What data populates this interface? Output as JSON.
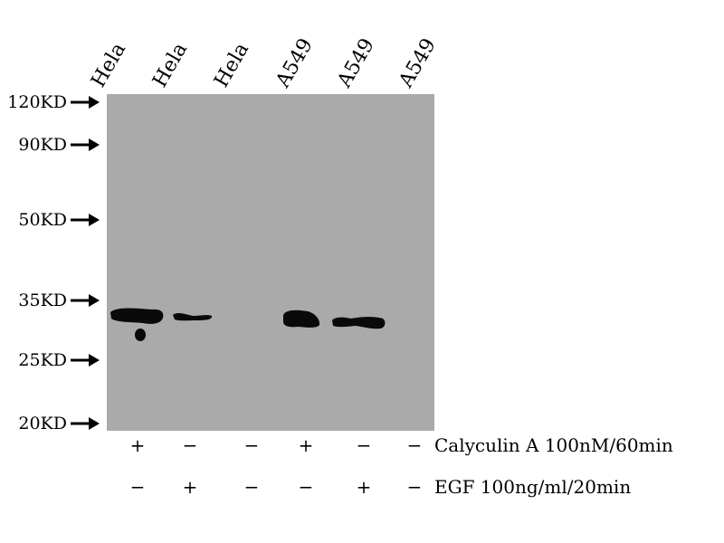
{
  "lanes": [
    {
      "label": "Hela",
      "calyculin": "+",
      "egf": "−"
    },
    {
      "label": "Hela",
      "calyculin": "−",
      "egf": "+"
    },
    {
      "label": "Hela",
      "calyculin": "−",
      "egf": "−"
    },
    {
      "label": "A549",
      "calyculin": "+",
      "egf": "−"
    },
    {
      "label": "A549",
      "calyculin": "−",
      "egf": "+"
    },
    {
      "label": "A549",
      "calyculin": "−",
      "egf": "−"
    }
  ],
  "markers": [
    "120KD",
    "90KD",
    "50KD",
    "35KD",
    "25KD",
    "20KD"
  ],
  "treatments": {
    "calyculin": "Calyculin A 100nM/60min",
    "egf": "EGF 100ng/ml/20min"
  },
  "colors": {
    "membrane": "#aaaaaa",
    "band": "#0a0a0a"
  }
}
